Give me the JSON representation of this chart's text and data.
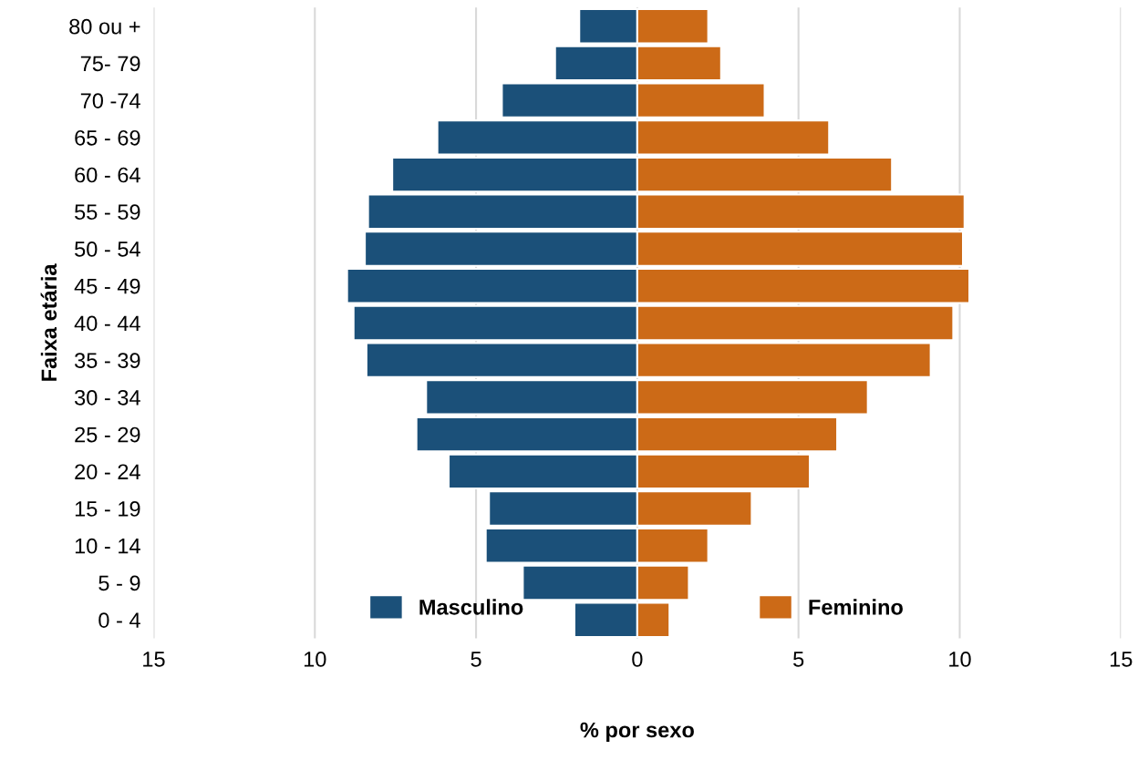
{
  "chart_data": {
    "type": "bar",
    "orientation": "horizontal",
    "stacked": true,
    "xlabel": "% por sexo",
    "ylabel": "Faixa etária",
    "categories": [
      "80 ou +",
      "75- 79",
      "70 -74",
      "65 - 69",
      "60 - 64",
      "55 - 59",
      "50 - 54",
      "45 - 49",
      "40 - 44",
      "35 - 39",
      "30 - 34",
      "25 - 29",
      "20 - 24",
      "15 - 19",
      "10 - 14",
      "5 - 9",
      "0 - 4"
    ],
    "series": [
      {
        "name": "Masculino",
        "color": "#1b5079",
        "values": [
          -1.8,
          -2.55,
          -4.2,
          -6.2,
          -7.6,
          -8.35,
          -8.45,
          -9.0,
          -8.8,
          -8.4,
          -6.55,
          -6.85,
          -5.85,
          -4.6,
          -4.7,
          -3.55,
          -1.95
        ]
      },
      {
        "name": "Feminino",
        "color": "#cc6a17",
        "values": [
          2.2,
          2.6,
          3.95,
          5.95,
          7.9,
          10.15,
          10.1,
          10.3,
          9.8,
          9.1,
          7.15,
          6.2,
          5.35,
          3.55,
          2.2,
          1.6,
          1.0
        ]
      }
    ],
    "xlim": [
      -15,
      15
    ],
    "xticks": [
      {
        "value": -15,
        "label": "15"
      },
      {
        "value": -10,
        "label": "10"
      },
      {
        "value": -5,
        "label": "5"
      },
      0,
      5,
      10,
      15
    ],
    "grid": "x",
    "legend": "bottom"
  }
}
